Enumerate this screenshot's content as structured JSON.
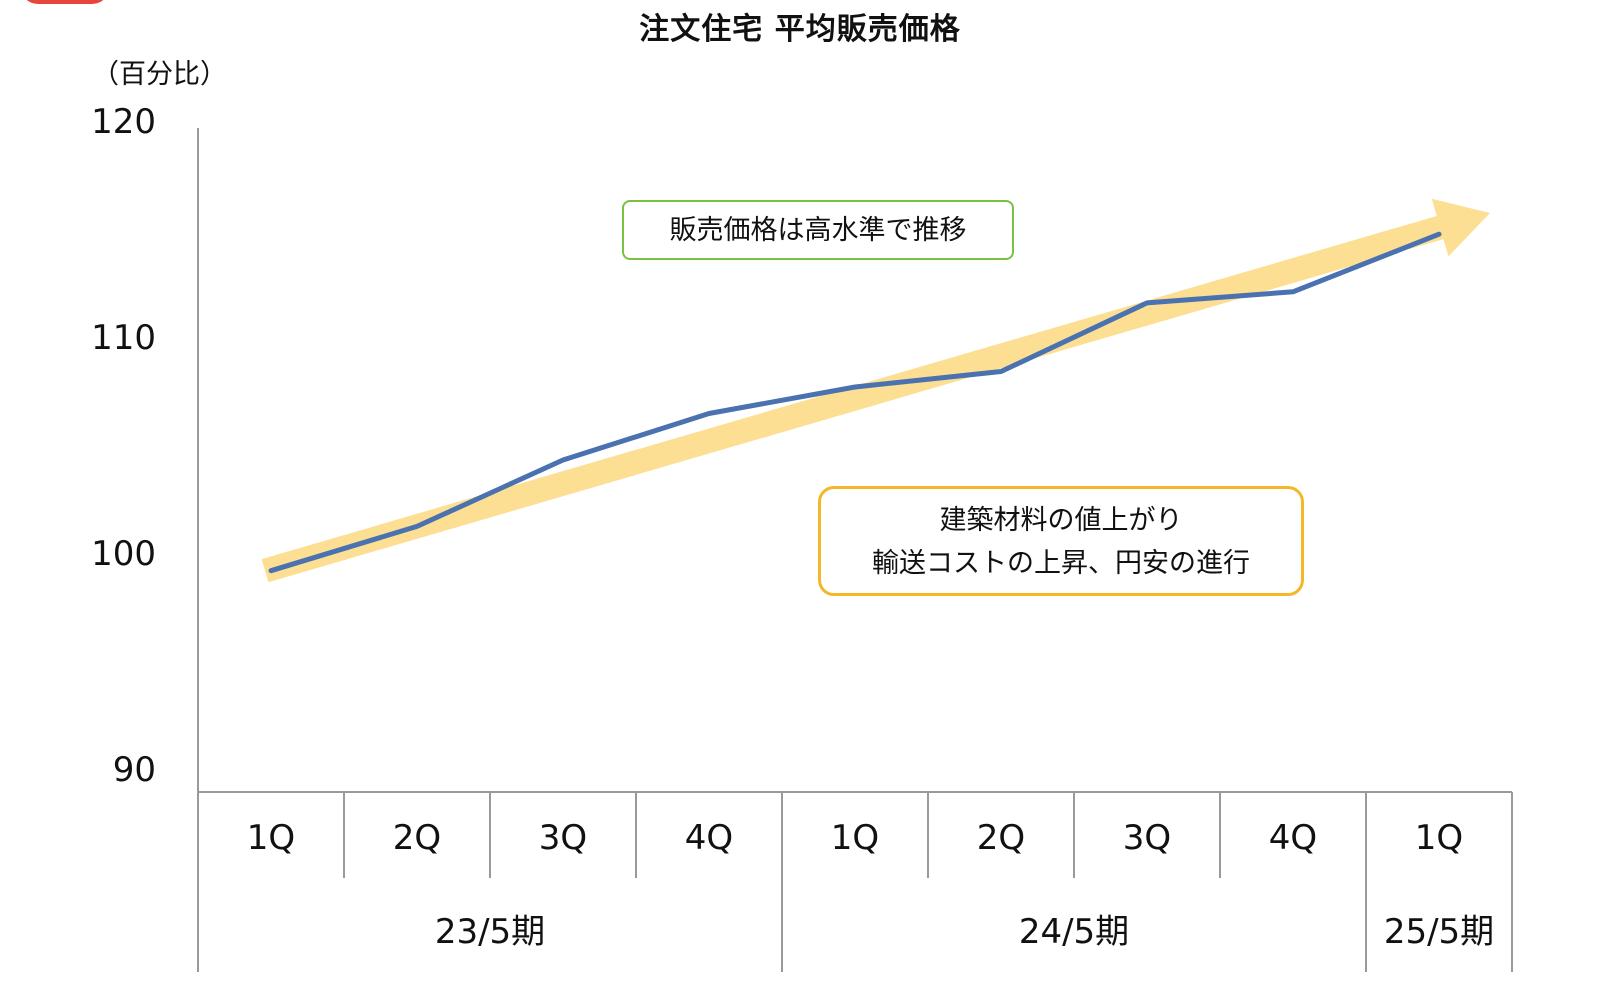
{
  "chart_data": {
    "type": "line",
    "title": "注文住宅 平均販売価格",
    "ylabel": "（百分比）",
    "ylim": [
      90,
      120
    ],
    "yticks": [
      90,
      100,
      110,
      120
    ],
    "categories": [
      "1Q",
      "2Q",
      "3Q",
      "4Q",
      "1Q",
      "2Q",
      "3Q",
      "4Q",
      "1Q"
    ],
    "periods": [
      {
        "label": "23/5期",
        "span": 4
      },
      {
        "label": "24/5期",
        "span": 4
      },
      {
        "label": "25/5期",
        "span": 1
      }
    ],
    "series": [
      {
        "values": [
          100,
          102,
          105,
          107.1,
          108.3,
          109,
          112.1,
          112.6,
          115.2
        ],
        "color": "#4a72b0"
      }
    ],
    "trend_arrow": {
      "from": 100,
      "to": 115.8,
      "color": "#fcd980"
    },
    "annotations": [
      {
        "text": "販売価格は高水準で推移",
        "border": "#7ac143"
      },
      {
        "lines": [
          "建築材料の値上がり",
          "輸送コストの上昇、円安の進行"
        ],
        "border": "#f5b728"
      }
    ],
    "grid": false
  }
}
